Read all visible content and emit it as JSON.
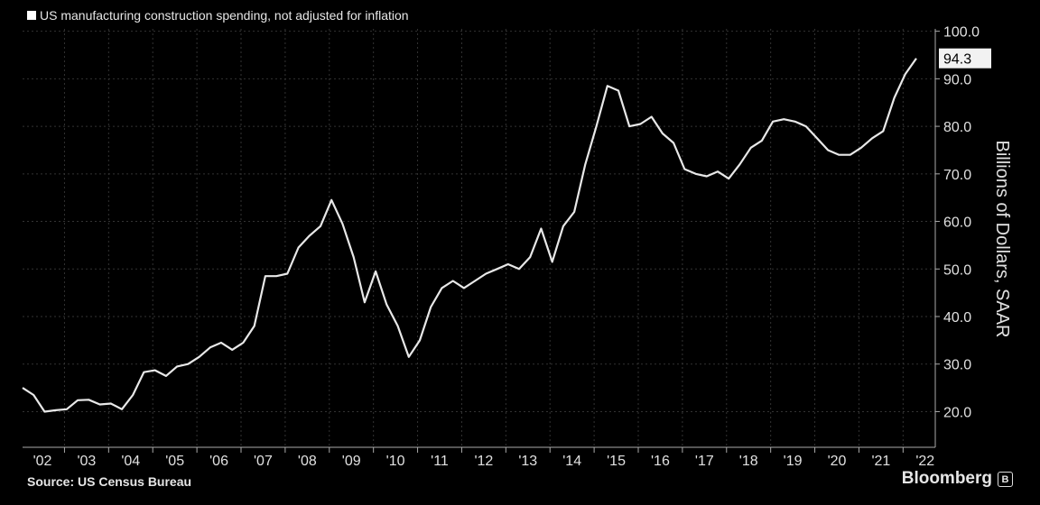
{
  "chart_data": {
    "type": "line",
    "title": "US manufacturing construction spending, not adjusted for inflation",
    "ylabel": "Billions of Dollars, SAAR",
    "ylim": [
      12.5,
      100.5
    ],
    "yticks": [
      "100.0",
      "90.0",
      "80.0",
      "70.0",
      "60.0",
      "50.0",
      "40.0",
      "30.0",
      "20.0"
    ],
    "ytick_values": [
      100,
      90,
      80,
      70,
      60,
      50,
      40,
      30,
      20
    ],
    "xticks": [
      "'02",
      "'03",
      "'04",
      "'05",
      "'06",
      "'07",
      "'08",
      "'09",
      "'10",
      "'11",
      "'12",
      "'13",
      "'14",
      "'15",
      "'16",
      "'17",
      "'18",
      "'19",
      "'20",
      "'21",
      "'22"
    ],
    "xlim": [
      2002.0,
      2022.25
    ],
    "last_value_label": "94.3",
    "grid": true,
    "series": [
      {
        "x": [
          2002.0,
          2002.25,
          2002.5,
          2002.75,
          2003.0,
          2003.25,
          2003.5,
          2003.75,
          2004.0,
          2004.25,
          2004.5,
          2004.75,
          2005.0,
          2005.25,
          2005.5,
          2005.75,
          2006.0,
          2006.25,
          2006.5,
          2006.75,
          2007.0,
          2007.25,
          2007.5,
          2007.75,
          2008.0,
          2008.25,
          2008.5,
          2008.75,
          2009.0,
          2009.25,
          2009.5,
          2009.75,
          2010.0,
          2010.25,
          2010.5,
          2010.75,
          2011.0,
          2011.25,
          2011.5,
          2011.75,
          2012.0,
          2012.25,
          2012.5,
          2012.75,
          2013.0,
          2013.25,
          2013.5,
          2013.75,
          2014.0,
          2014.25,
          2014.5,
          2014.75,
          2015.0,
          2015.25,
          2015.5,
          2015.75,
          2016.0,
          2016.25,
          2016.5,
          2016.75,
          2017.0,
          2017.25,
          2017.5,
          2017.75,
          2018.0,
          2018.25,
          2018.5,
          2018.75,
          2019.0,
          2019.25,
          2019.5,
          2019.75,
          2020.0,
          2020.25,
          2020.5,
          2020.75,
          2021.0,
          2021.25,
          2021.5,
          2021.75,
          2022.0,
          2022.25
        ],
        "values": [
          25.0,
          23.5,
          20.0,
          20.3,
          20.5,
          22.4,
          22.5,
          21.5,
          21.7,
          20.5,
          23.5,
          28.3,
          28.7,
          27.5,
          29.5,
          30.0,
          31.5,
          33.5,
          34.5,
          33.0,
          34.5,
          38.0,
          48.5,
          48.5,
          49.0,
          54.5,
          57.0,
          59.0,
          64.5,
          59.5,
          52.5,
          43.0,
          49.5,
          42.5,
          38.0,
          31.5,
          35.0,
          42.0,
          46.0,
          47.5,
          46.0,
          47.5,
          49.0,
          50.0,
          51.0,
          50.0,
          52.5,
          58.5,
          51.5,
          59.0,
          62.0,
          72.0,
          80.0,
          88.5,
          87.5,
          80.0,
          80.5,
          82.0,
          78.5,
          76.5,
          71.0,
          70.0,
          69.5,
          70.5,
          69.0,
          72.0,
          75.5,
          77.0,
          81.0,
          81.5,
          81.0,
          80.0,
          77.5,
          75.0,
          74.0,
          74.0,
          75.5,
          77.5,
          79.0,
          86.0,
          91.0,
          94.3
        ]
      }
    ]
  },
  "source_text": "Source: US Census Bureau",
  "brand": {
    "name": "Bloomberg",
    "icon": "bloomberg-logo-icon"
  }
}
